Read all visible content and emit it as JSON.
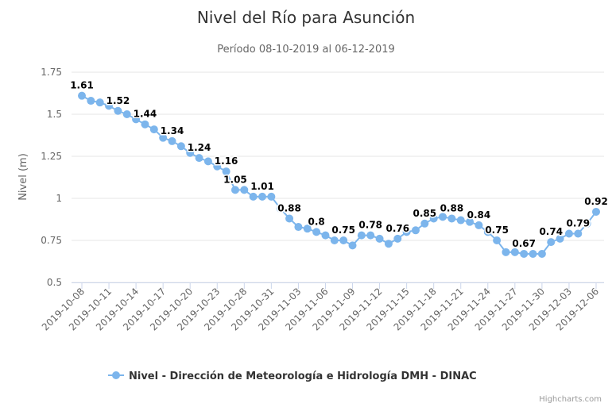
{
  "chart_data": {
    "type": "line",
    "title": "Nivel del Río para Asunción",
    "subtitle": "Período 08-10-2019 al 06-12-2019",
    "xlabel": "",
    "ylabel": "Nivel (m)",
    "ylim": [
      0.5,
      1.75
    ],
    "yticks": [
      "0.5",
      "0.75",
      "1",
      "1.25",
      "1.5",
      "1.75"
    ],
    "grid": true,
    "legend_position": "bottom",
    "x": [
      "2019-10-08",
      "2019-10-09",
      "2019-10-10",
      "2019-10-11",
      "2019-10-12",
      "2019-10-13",
      "2019-10-14",
      "2019-10-15",
      "2019-10-16",
      "2019-10-17",
      "2019-10-18",
      "2019-10-19",
      "2019-10-20",
      "2019-10-21",
      "2019-10-22",
      "2019-10-23",
      "2019-10-24",
      "2019-10-25",
      "2019-10-28",
      "2019-10-29",
      "2019-10-30",
      "2019-10-31",
      "2019-11-01",
      "2019-11-02",
      "2019-11-03",
      "2019-11-04",
      "2019-11-05",
      "2019-11-06",
      "2019-11-07",
      "2019-11-08",
      "2019-11-09",
      "2019-11-10",
      "2019-11-11",
      "2019-11-12",
      "2019-11-13",
      "2019-11-14",
      "2019-11-15",
      "2019-11-16",
      "2019-11-17",
      "2019-11-18",
      "2019-11-19",
      "2019-11-20",
      "2019-11-21",
      "2019-11-22",
      "2019-11-23",
      "2019-11-24",
      "2019-11-25",
      "2019-11-26",
      "2019-11-27",
      "2019-11-28",
      "2019-11-29",
      "2019-11-30",
      "2019-12-01",
      "2019-12-02",
      "2019-12-03",
      "2019-12-04",
      "2019-12-05",
      "2019-12-06"
    ],
    "xticks": [
      "2019-10-08",
      "2019-10-11",
      "2019-10-14",
      "2019-10-17",
      "2019-10-20",
      "2019-10-23",
      "2019-10-28",
      "2019-10-31",
      "2019-11-03",
      "2019-11-06",
      "2019-11-09",
      "2019-11-12",
      "2019-11-15",
      "2019-11-18",
      "2019-11-21",
      "2019-11-24",
      "2019-11-27",
      "2019-11-30",
      "2019-12-03",
      "2019-12-06"
    ],
    "series": [
      {
        "name": "Nivel - Dirección de Meteorología e Hidrología DMH - DINAC",
        "color": "#7cb5ec",
        "values": [
          1.61,
          1.58,
          1.57,
          1.55,
          1.52,
          1.5,
          1.47,
          1.44,
          1.41,
          1.36,
          1.34,
          1.31,
          1.27,
          1.24,
          1.22,
          1.19,
          1.16,
          1.05,
          1.05,
          1.01,
          1.01,
          1.01,
          0.94,
          0.88,
          0.83,
          0.82,
          0.8,
          0.78,
          0.75,
          0.75,
          0.72,
          0.78,
          0.78,
          0.76,
          0.73,
          0.76,
          0.8,
          0.81,
          0.85,
          0.88,
          0.89,
          0.88,
          0.87,
          0.86,
          0.84,
          0.8,
          0.75,
          0.68,
          0.68,
          0.67,
          0.67,
          0.67,
          0.74,
          0.76,
          0.79,
          0.79,
          0.85,
          0.92
        ],
        "data_labels": [
          {
            "x": "2019-10-08",
            "label": "1.61"
          },
          {
            "x": "2019-10-12",
            "label": "1.52"
          },
          {
            "x": "2019-10-15",
            "label": "1.44"
          },
          {
            "x": "2019-10-18",
            "label": "1.34"
          },
          {
            "x": "2019-10-21",
            "label": "1.24"
          },
          {
            "x": "2019-10-24",
            "label": "1.16"
          },
          {
            "x": "2019-10-25",
            "label": "1.05"
          },
          {
            "x": "2019-10-30",
            "label": "1.01"
          },
          {
            "x": "2019-11-02",
            "label": "0.88"
          },
          {
            "x": "2019-11-05",
            "label": "0.8"
          },
          {
            "x": "2019-11-08",
            "label": "0.75"
          },
          {
            "x": "2019-11-11",
            "label": "0.78"
          },
          {
            "x": "2019-11-14",
            "label": "0.76"
          },
          {
            "x": "2019-11-17",
            "label": "0.85"
          },
          {
            "x": "2019-11-20",
            "label": "0.88"
          },
          {
            "x": "2019-11-23",
            "label": "0.84"
          },
          {
            "x": "2019-11-25",
            "label": "0.75"
          },
          {
            "x": "2019-11-28",
            "label": "0.67"
          },
          {
            "x": "2019-12-01",
            "label": "0.74"
          },
          {
            "x": "2019-12-04",
            "label": "0.79"
          },
          {
            "x": "2019-12-06",
            "label": "0.92"
          }
        ]
      }
    ]
  },
  "credits": "Highcharts.com"
}
